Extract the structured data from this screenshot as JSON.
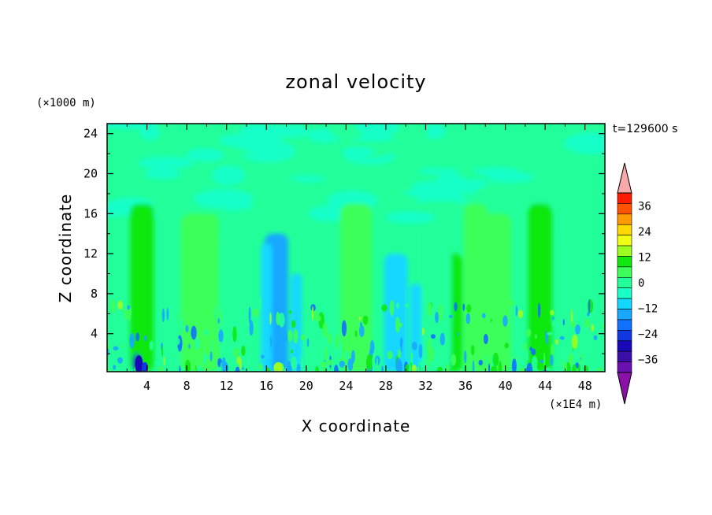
{
  "chart_data": {
    "type": "heatmap",
    "title": "zonal velocity",
    "xlabel": "X coordinate",
    "ylabel": "Z coordinate",
    "x_unit": "(×1E4 m)",
    "y_unit": "(×1000 m)",
    "time_label": "t=129600 s",
    "xlim": [
      0,
      50
    ],
    "ylim": [
      0.2,
      25
    ],
    "x_ticks": [
      4,
      8,
      12,
      16,
      20,
      24,
      28,
      32,
      36,
      40,
      44,
      48
    ],
    "y_ticks": [
      4,
      8,
      12,
      16,
      20,
      24
    ],
    "colorbar": {
      "ticks": [
        36,
        24,
        12,
        0,
        -12,
        -24,
        -36
      ],
      "levels": [
        -42,
        -36,
        -30,
        -24,
        -18,
        -12,
        -6,
        -3,
        0,
        3,
        6,
        12,
        18,
        24,
        30,
        36,
        42
      ],
      "colors": [
        "#6a0fb0",
        "#3a0fa8",
        "#1808b8",
        "#1038e0",
        "#1070ff",
        "#18a8ff",
        "#12d8ff",
        "#18ffc8",
        "#22ff9a",
        "#3cff5a",
        "#10e810",
        "#9cff20",
        "#f0ff10",
        "#ffd800",
        "#ff9a00",
        "#ff5200",
        "#ff1a00"
      ],
      "under_color": "#8a10a8",
      "over_color": "#f7a8a8"
    },
    "features": [
      {
        "x": 3.5,
        "z_top": 17,
        "value": 9
      },
      {
        "x": 43.5,
        "z_top": 17,
        "value": 9
      },
      {
        "x": 34.5,
        "z_top": 12,
        "value": 6
      },
      {
        "x": 17,
        "z_top": 14,
        "value": -8
      },
      {
        "x": 29,
        "z_top": 12,
        "value": -6
      },
      {
        "x": 10,
        "z_top": 16,
        "value": 3
      },
      {
        "x": 37,
        "z_top": 17,
        "value": 3
      },
      {
        "x": 3,
        "z_top": 2,
        "value": -30
      }
    ]
  }
}
